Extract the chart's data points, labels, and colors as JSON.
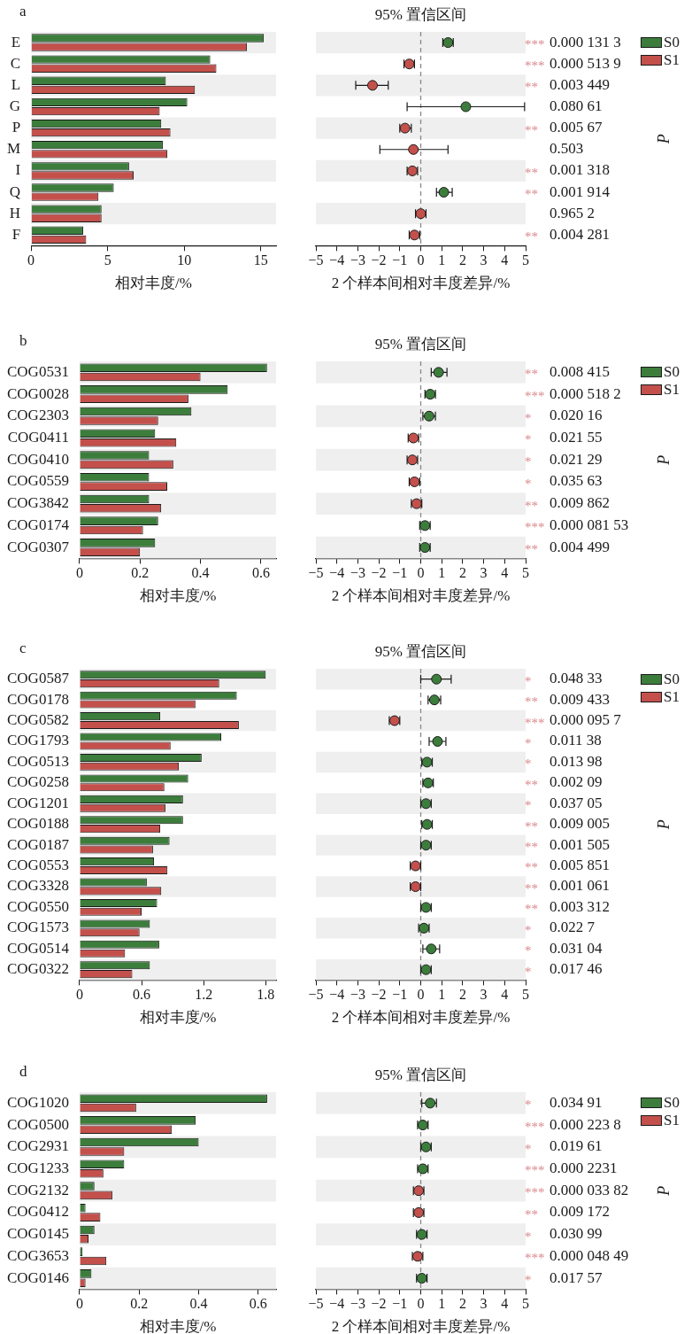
{
  "chart_data": [
    {
      "type": "bar",
      "title": "a",
      "orientation": "horizontal",
      "categories": [
        "E",
        "C",
        "L",
        "G",
        "P",
        "M",
        "I",
        "Q",
        "H",
        "F"
      ],
      "series": [
        {
          "name": "S0",
          "color": "#3c7d3c",
          "values": [
            15.2,
            11.7,
            8.8,
            10.2,
            8.5,
            8.6,
            6.4,
            5.4,
            4.6,
            3.4
          ]
        },
        {
          "name": "S1",
          "color": "#c4504c",
          "values": [
            14.1,
            12.1,
            10.7,
            8.4,
            9.1,
            8.9,
            6.7,
            4.4,
            4.6,
            3.6
          ]
        }
      ],
      "xlim": [
        0,
        16
      ],
      "xticks": [
        0,
        5,
        10,
        15
      ],
      "xlabel": "相对丰度/%",
      "legend": "right",
      "bands": [
        {
          "axis": "y",
          "from": "E",
          "to": "E",
          "color": "#efefef"
        },
        {
          "axis": "y",
          "from": "L",
          "to": "L",
          "color": "#efefef"
        },
        {
          "axis": "y",
          "from": "P",
          "to": "P",
          "color": "#efefef"
        },
        {
          "axis": "y",
          "from": "I",
          "to": "I",
          "color": "#efefef"
        },
        {
          "axis": "y",
          "from": "H",
          "to": "H",
          "color": "#efefef"
        }
      ]
    },
    {
      "type": "scatter",
      "title": "95% 置信区间",
      "orientation": "horizontal",
      "categories": [
        "E",
        "C",
        "L",
        "G",
        "P",
        "M",
        "I",
        "Q",
        "H",
        "F"
      ],
      "series": [
        {
          "values": [
            1.3,
            -0.55,
            -2.3,
            2.15,
            -0.75,
            -0.35,
            -0.4,
            1.1,
            0,
            -0.3
          ],
          "colors": [
            "#3c7d3c",
            "#c4504c",
            "#c4504c",
            "#3c7d3c",
            "#c4504c",
            "#c4504c",
            "#c4504c",
            "#3c7d3c",
            "#c4504c",
            "#c4504c"
          ],
          "errors": [
            [
              1.05,
              1.55
            ],
            [
              -0.8,
              -0.3
            ],
            [
              -3.1,
              -1.55
            ],
            [
              -0.65,
              4.95
            ],
            [
              -1.0,
              -0.45
            ],
            [
              -1.95,
              1.3
            ],
            [
              -0.65,
              -0.15
            ],
            [
              0.75,
              1.5
            ],
            [
              -0.25,
              0.25
            ],
            [
              -0.55,
              -0.05
            ]
          ]
        }
      ],
      "xlim": [
        -5,
        5
      ],
      "xticks": [
        {
          "value": -5,
          "label": "−5"
        },
        {
          "value": -4,
          "label": "−4"
        },
        {
          "value": -3,
          "label": "−3"
        },
        {
          "value": -2,
          "label": "−2"
        },
        {
          "value": -1,
          "label": "−1"
        },
        0,
        1,
        2,
        3,
        4,
        5
      ],
      "xlabel": "2 个样本间相对丰度差异/%",
      "y2label": "P",
      "tick_labels": "x",
      "marker": "circle",
      "ref_lines": [
        {
          "axis": "x",
          "value": 0,
          "color": "#888888",
          "line_style": "dashed"
        }
      ],
      "bands": [
        {
          "axis": "y",
          "from": "E",
          "to": "E",
          "color": "#efefef"
        },
        {
          "axis": "y",
          "from": "L",
          "to": "L",
          "color": "#efefef"
        },
        {
          "axis": "y",
          "from": "P",
          "to": "P",
          "color": "#efefef"
        },
        {
          "axis": "y",
          "from": "I",
          "to": "I",
          "color": "#efefef"
        },
        {
          "axis": "y",
          "from": "H",
          "to": "H",
          "color": "#efefef"
        }
      ],
      "annotations": [
        "*** 0.000 131 3",
        "*** 0.000 513 9",
        "** 0.003 449",
        "0.080 61",
        "** 0.005 67",
        "0.503",
        "** 0.001 318",
        "** 0.001 914",
        "0.965 2",
        "** 0.004 281"
      ]
    },
    {
      "type": "bar",
      "title": "b",
      "orientation": "horizontal",
      "categories": [
        "COG0531",
        "COG0028",
        "COG2303",
        "COG0411",
        "COG0410",
        "COG0559",
        "COG3842",
        "COG0174",
        "COG0307"
      ],
      "series": [
        {
          "name": "S0",
          "color": "#3c7d3c",
          "values": [
            0.62,
            0.49,
            0.37,
            0.25,
            0.23,
            0.23,
            0.23,
            0.26,
            0.25
          ]
        },
        {
          "name": "S1",
          "color": "#c4504c",
          "values": [
            0.4,
            0.36,
            0.26,
            0.32,
            0.31,
            0.29,
            0.27,
            0.21,
            0.2
          ]
        }
      ],
      "xlim": [
        0,
        0.65
      ],
      "xticks": [
        0,
        0.2,
        0.4,
        0.6
      ],
      "xlabel": "相对丰度/%",
      "legend": "right",
      "bands": [
        {
          "axis": "y",
          "from": "COG0531",
          "to": "COG0531",
          "color": "#efefef"
        },
        {
          "axis": "y",
          "from": "COG2303",
          "to": "COG2303",
          "color": "#efefef"
        },
        {
          "axis": "y",
          "from": "COG0410",
          "to": "COG0410",
          "color": "#efefef"
        },
        {
          "axis": "y",
          "from": "COG3842",
          "to": "COG3842",
          "color": "#efefef"
        },
        {
          "axis": "y",
          "from": "COG0307",
          "to": "COG0307",
          "color": "#efefef"
        }
      ]
    },
    {
      "type": "scatter",
      "title": "95% 置信区间",
      "orientation": "horizontal",
      "categories": [
        "COG0531",
        "COG0028",
        "COG2303",
        "COG0411",
        "COG0410",
        "COG0559",
        "COG3842",
        "COG0174",
        "COG0307"
      ],
      "series": [
        {
          "values": [
            0.85,
            0.45,
            0.4,
            -0.35,
            -0.4,
            -0.3,
            -0.2,
            0.2,
            0.2
          ],
          "colors": [
            "#3c7d3c",
            "#3c7d3c",
            "#3c7d3c",
            "#c4504c",
            "#c4504c",
            "#c4504c",
            "#c4504c",
            "#3c7d3c",
            "#3c7d3c"
          ],
          "errors": [
            [
              0.5,
              1.25
            ],
            [
              0.2,
              0.7
            ],
            [
              0.1,
              0.7
            ],
            [
              -0.6,
              -0.1
            ],
            [
              -0.65,
              -0.15
            ],
            [
              -0.55,
              -0.05
            ],
            [
              -0.45,
              0.05
            ],
            [
              -0.05,
              0.45
            ],
            [
              -0.05,
              0.45
            ]
          ]
        }
      ],
      "xlim": [
        -5,
        5
      ],
      "xticks": [
        {
          "value": -5,
          "label": "−5"
        },
        {
          "value": -4,
          "label": "−4"
        },
        {
          "value": -3,
          "label": "−3"
        },
        {
          "value": -2,
          "label": "−2"
        },
        {
          "value": -1,
          "label": "−1"
        },
        0,
        1,
        2,
        3,
        4,
        5
      ],
      "xlabel": "2 个样本间相对丰度差异/%",
      "y2label": "P",
      "tick_labels": "x",
      "marker": "circle",
      "ref_lines": [
        {
          "axis": "x",
          "value": 0,
          "color": "#888888",
          "line_style": "dashed"
        }
      ],
      "bands": [
        {
          "axis": "y",
          "from": "COG0531",
          "to": "COG0531",
          "color": "#efefef"
        },
        {
          "axis": "y",
          "from": "COG2303",
          "to": "COG2303",
          "color": "#efefef"
        },
        {
          "axis": "y",
          "from": "COG0410",
          "to": "COG0410",
          "color": "#efefef"
        },
        {
          "axis": "y",
          "from": "COG3842",
          "to": "COG3842",
          "color": "#efefef"
        },
        {
          "axis": "y",
          "from": "COG0307",
          "to": "COG0307",
          "color": "#efefef"
        }
      ],
      "annotations": [
        "** 0.008 415",
        "*** 0.000 518 2",
        "* 0.020 16",
        "* 0.021 55",
        "* 0.021 29",
        "* 0.035 63",
        "** 0.009 862",
        "*** 0.000 081 53",
        "** 0.004 499"
      ]
    },
    {
      "type": "bar",
      "title": "c",
      "orientation": "horizontal",
      "categories": [
        "COG0587",
        "COG0178",
        "COG0582",
        "COG1793",
        "COG0513",
        "COG0258",
        "COG1201",
        "COG0188",
        "COG0187",
        "COG0553",
        "COG3328",
        "COG0550",
        "COG1573",
        "COG0514",
        "COG0322"
      ],
      "series": [
        {
          "name": "S0",
          "color": "#3c7d3c",
          "values": [
            1.8,
            1.52,
            0.78,
            1.37,
            1.18,
            1.05,
            1.0,
            1.0,
            0.87,
            0.72,
            0.65,
            0.75,
            0.68,
            0.77,
            0.68
          ]
        },
        {
          "name": "S1",
          "color": "#c4504c",
          "values": [
            1.35,
            1.12,
            1.54,
            0.88,
            0.96,
            0.82,
            0.83,
            0.78,
            0.71,
            0.85,
            0.79,
            0.6,
            0.58,
            0.44,
            0.51
          ]
        }
      ],
      "xlim": [
        0,
        1.9
      ],
      "xticks": [
        0,
        0.6,
        1.2,
        1.8
      ],
      "xlabel": "相对丰度/%",
      "legend": "right",
      "bands": [
        {
          "axis": "y",
          "from": "COG0587",
          "to": "COG0587",
          "color": "#efefef"
        },
        {
          "axis": "y",
          "from": "COG0582",
          "to": "COG0582",
          "color": "#efefef"
        },
        {
          "axis": "y",
          "from": "COG0513",
          "to": "COG0513",
          "color": "#efefef"
        },
        {
          "axis": "y",
          "from": "COG1201",
          "to": "COG1201",
          "color": "#efefef"
        },
        {
          "axis": "y",
          "from": "COG0187",
          "to": "COG0187",
          "color": "#efefef"
        },
        {
          "axis": "y",
          "from": "COG3328",
          "to": "COG3328",
          "color": "#efefef"
        },
        {
          "axis": "y",
          "from": "COG1573",
          "to": "COG1573",
          "color": "#efefef"
        },
        {
          "axis": "y",
          "from": "COG0322",
          "to": "COG0322",
          "color": "#efefef"
        }
      ]
    },
    {
      "type": "scatter",
      "title": "95% 置信区间",
      "orientation": "horizontal",
      "categories": [
        "COG0587",
        "COG0178",
        "COG0582",
        "COG1793",
        "COG0513",
        "COG0258",
        "COG1201",
        "COG0188",
        "COG0187",
        "COG0553",
        "COG3328",
        "COG0550",
        "COG1573",
        "COG0514",
        "COG0322"
      ],
      "series": [
        {
          "values": [
            0.75,
            0.65,
            -1.25,
            0.8,
            0.3,
            0.35,
            0.25,
            0.3,
            0.25,
            -0.25,
            -0.25,
            0.25,
            0.15,
            0.5,
            0.25
          ],
          "colors": [
            "#3c7d3c",
            "#3c7d3c",
            "#c4504c",
            "#3c7d3c",
            "#3c7d3c",
            "#3c7d3c",
            "#3c7d3c",
            "#3c7d3c",
            "#3c7d3c",
            "#c4504c",
            "#c4504c",
            "#3c7d3c",
            "#3c7d3c",
            "#3c7d3c",
            "#3c7d3c"
          ],
          "errors": [
            [
              0,
              1.45
            ],
            [
              0.35,
              0.95
            ],
            [
              -1.5,
              -1.0
            ],
            [
              0.4,
              1.2
            ],
            [
              0.05,
              0.55
            ],
            [
              0.1,
              0.6
            ],
            [
              0,
              0.5
            ],
            [
              0.05,
              0.55
            ],
            [
              0,
              0.5
            ],
            [
              -0.5,
              0
            ],
            [
              -0.5,
              0
            ],
            [
              0,
              0.5
            ],
            [
              -0.1,
              0.4
            ],
            [
              0.1,
              0.9
            ],
            [
              0,
              0.5
            ]
          ]
        }
      ],
      "xlim": [
        -5,
        5
      ],
      "xticks": [
        {
          "value": -5,
          "label": "−5"
        },
        {
          "value": -4,
          "label": "−4"
        },
        {
          "value": -3,
          "label": "−3"
        },
        {
          "value": -2,
          "label": "−2"
        },
        {
          "value": -1,
          "label": "−1"
        },
        0,
        1,
        2,
        3,
        4,
        5
      ],
      "xlabel": "2 个样本间相对丰度差异/%",
      "y2label": "P",
      "tick_labels": "x",
      "marker": "circle",
      "ref_lines": [
        {
          "axis": "x",
          "value": 0,
          "color": "#888888",
          "line_style": "dashed"
        }
      ],
      "bands": [
        {
          "axis": "y",
          "from": "COG0587",
          "to": "COG0587",
          "color": "#efefef"
        },
        {
          "axis": "y",
          "from": "COG0582",
          "to": "COG0582",
          "color": "#efefef"
        },
        {
          "axis": "y",
          "from": "COG0513",
          "to": "COG0513",
          "color": "#efefef"
        },
        {
          "axis": "y",
          "from": "COG1201",
          "to": "COG1201",
          "color": "#efefef"
        },
        {
          "axis": "y",
          "from": "COG0187",
          "to": "COG0187",
          "color": "#efefef"
        },
        {
          "axis": "y",
          "from": "COG3328",
          "to": "COG3328",
          "color": "#efefef"
        },
        {
          "axis": "y",
          "from": "COG1573",
          "to": "COG1573",
          "color": "#efefef"
        },
        {
          "axis": "y",
          "from": "COG0322",
          "to": "COG0322",
          "color": "#efefef"
        }
      ],
      "annotations": [
        "* 0.048 33",
        "** 0.009 433",
        "*** 0.000 095 7",
        "* 0.011 38",
        "* 0.013 98",
        "** 0.002 09",
        "* 0.037 05",
        "** 0.009 005",
        "** 0.001 505",
        "** 0.005 851",
        "** 0.001 061",
        "** 0.003 312",
        "* 0.022 7",
        "* 0.031 04",
        "* 0.017 46"
      ]
    },
    {
      "type": "bar",
      "title": "d",
      "orientation": "horizontal",
      "categories": [
        "COG1020",
        "COG0500",
        "COG2931",
        "COG1233",
        "COG2132",
        "COG0412",
        "COG0145",
        "COG3653",
        "COG0146"
      ],
      "series": [
        {
          "name": "S0",
          "color": "#3c7d3c",
          "values": [
            0.63,
            0.39,
            0.4,
            0.15,
            0.05,
            0.02,
            0.05,
            0.01,
            0.04
          ]
        },
        {
          "name": "S1",
          "color": "#c4504c",
          "values": [
            0.19,
            0.31,
            0.15,
            0.08,
            0.11,
            0.07,
            0.03,
            0.09,
            0.02
          ]
        }
      ],
      "xlim": [
        0,
        0.66
      ],
      "xticks": [
        0,
        0.2,
        0.4,
        0.6
      ],
      "xlabel": "相对丰度/%",
      "legend": "right",
      "bands": [
        {
          "axis": "y",
          "from": "COG1020",
          "to": "COG1020",
          "color": "#efefef"
        },
        {
          "axis": "y",
          "from": "COG2931",
          "to": "COG2931",
          "color": "#efefef"
        },
        {
          "axis": "y",
          "from": "COG2132",
          "to": "COG2132",
          "color": "#efefef"
        },
        {
          "axis": "y",
          "from": "COG0145",
          "to": "COG0145",
          "color": "#efefef"
        },
        {
          "axis": "y",
          "from": "COG0146",
          "to": "COG0146",
          "color": "#efefef"
        }
      ]
    },
    {
      "type": "scatter",
      "title": "95% 置信区间",
      "orientation": "horizontal",
      "categories": [
        "COG1020",
        "COG0500",
        "COG2931",
        "COG1233",
        "COG2132",
        "COG0412",
        "COG0145",
        "COG3653",
        "COG0146"
      ],
      "series": [
        {
          "values": [
            0.45,
            0.1,
            0.25,
            0.1,
            -0.1,
            -0.1,
            0.05,
            -0.15,
            0.05
          ],
          "colors": [
            "#3c7d3c",
            "#3c7d3c",
            "#3c7d3c",
            "#3c7d3c",
            "#c4504c",
            "#c4504c",
            "#3c7d3c",
            "#c4504c",
            "#3c7d3c"
          ],
          "errors": [
            [
              0.05,
              0.75
            ],
            [
              -0.15,
              0.35
            ],
            [
              0,
              0.5
            ],
            [
              -0.15,
              0.35
            ],
            [
              -0.35,
              0.15
            ],
            [
              -0.35,
              0.15
            ],
            [
              -0.2,
              0.3
            ],
            [
              -0.4,
              0.1
            ],
            [
              -0.2,
              0.3
            ]
          ]
        }
      ],
      "xlim": [
        -5,
        5
      ],
      "xticks": [
        {
          "value": -5,
          "label": "−5"
        },
        {
          "value": -4,
          "label": "−4"
        },
        {
          "value": -3,
          "label": "−3"
        },
        {
          "value": -2,
          "label": "−2"
        },
        {
          "value": -1,
          "label": "−1"
        },
        0,
        1,
        2,
        3,
        4,
        5
      ],
      "xlabel": "2 个样本间相对丰度差异/%",
      "y2label": "P",
      "tick_labels": "x",
      "marker": "circle",
      "ref_lines": [
        {
          "axis": "x",
          "value": 0,
          "color": "#888888",
          "line_style": "dashed"
        }
      ],
      "bands": [
        {
          "axis": "y",
          "from": "COG1020",
          "to": "COG1020",
          "color": "#efefef"
        },
        {
          "axis": "y",
          "from": "COG2931",
          "to": "COG2931",
          "color": "#efefef"
        },
        {
          "axis": "y",
          "from": "COG2132",
          "to": "COG2132",
          "color": "#efefef"
        },
        {
          "axis": "y",
          "from": "COG0145",
          "to": "COG0145",
          "color": "#efefef"
        },
        {
          "axis": "y",
          "from": "COG0146",
          "to": "COG0146",
          "color": "#efefef"
        }
      ],
      "annotations": [
        "* 0.034 91",
        "*** 0.000 223 8",
        "* 0.019 61",
        "*** 0.000 2231",
        "*** 0.000 033 82",
        "** 0.009 172",
        "* 0.030 99",
        "*** 0.000 048 49",
        "* 0.017 57"
      ]
    }
  ]
}
